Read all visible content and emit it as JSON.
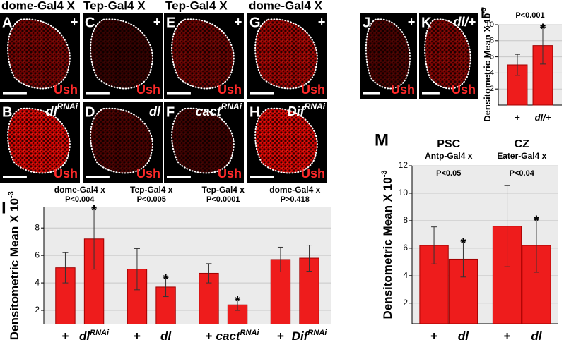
{
  "column_headers": [
    "dome-Gal4 X",
    "Tep-Gal4 X",
    "Tep-Gal4 X",
    "dome-Gal4 X"
  ],
  "image_panels": [
    {
      "letter": "A",
      "genotype": "+",
      "stain": "Ush"
    },
    {
      "letter": "B",
      "genotype": "dl",
      "genotype_sup": "RNAi",
      "stain": "Ush"
    },
    {
      "letter": "C",
      "genotype": "+",
      "stain": "Ush"
    },
    {
      "letter": "D",
      "genotype": "dl",
      "stain": "Ush"
    },
    {
      "letter": "E",
      "genotype": "+",
      "stain": "Ush"
    },
    {
      "letter": "F",
      "genotype": "cact",
      "genotype_sup": "RNAi",
      "stain": "Ush"
    },
    {
      "letter": "G",
      "genotype": "+",
      "stain": "Ush"
    },
    {
      "letter": "H",
      "genotype": "Dif",
      "genotype_sup": "RNAi",
      "stain": "Ush"
    },
    {
      "letter": "J",
      "genotype": "+",
      "stain": "Ush"
    },
    {
      "letter": "K",
      "genotype": "dl/+",
      "stain": "Ush"
    }
  ],
  "chart_data": [
    {
      "type": "bar",
      "panel": "I",
      "ylabel": "Densitometric Mean  X  10",
      "ylabel_sup": "-3",
      "group_labels": [
        "dome-Gal4 x",
        "Tep-Gal4 x",
        "Tep-Gal4 x",
        "dome-Gal4 x"
      ],
      "p_values": [
        "P<0.004",
        "P<0.005",
        "P<0.0001",
        "P>0.418"
      ],
      "categories": [
        "+",
        "dl",
        "+",
        "dl",
        "+",
        "cact",
        "+",
        "Dif"
      ],
      "category_superscripts": [
        null,
        "RNAi",
        null,
        null,
        null,
        "RNAi",
        null,
        "RNAi"
      ],
      "values": [
        5.1,
        7.2,
        5.0,
        3.7,
        4.7,
        2.4,
        5.7,
        5.8
      ],
      "errors": [
        1.1,
        2.2,
        1.5,
        0.7,
        0.7,
        0.4,
        0.9,
        0.95
      ],
      "value_annotations": [
        null,
        "*",
        null,
        "*",
        null,
        "*",
        null,
        null
      ],
      "color": "#ee1c1c",
      "ylim": [
        1,
        9.5
      ],
      "yticks": [
        2,
        4,
        6,
        8
      ],
      "grid": true
    },
    {
      "type": "bar",
      "panel": "L",
      "ylabel": "Densitometric Mean  X  10",
      "ylabel_sup": "-3",
      "p_values": [
        "P<0.001"
      ],
      "categories": [
        "+",
        "dl/+"
      ],
      "category_superscripts": [
        null,
        null
      ],
      "values": [
        5.0,
        7.4
      ],
      "errors": [
        1.3,
        2.3
      ],
      "value_annotations": [
        null,
        "*"
      ],
      "color": "#ee1c1c",
      "ylim": [
        0,
        10
      ],
      "yticks": [
        2,
        4,
        6,
        8,
        10
      ],
      "grid": true
    },
    {
      "type": "bar",
      "panel": "M",
      "ylabel": "Densitometric Mean  X  10",
      "ylabel_sup": "-3",
      "group_titles": [
        "PSC",
        "CZ"
      ],
      "group_labels": [
        "Antp-Gal4 x",
        "Eater-Gal4 x"
      ],
      "p_values": [
        "P<0.05",
        "P<0.04"
      ],
      "categories": [
        "+",
        "dl",
        "+",
        "dl"
      ],
      "category_superscripts": [
        null,
        null,
        null,
        null
      ],
      "values": [
        6.2,
        5.2,
        7.6,
        6.2
      ],
      "errors": [
        1.35,
        1.3,
        2.95,
        1.95
      ],
      "value_annotations": [
        null,
        "*",
        null,
        "*"
      ],
      "color": "#ee1c1c",
      "ylim": [
        0.5,
        12
      ],
      "yticks": [
        2,
        4,
        6,
        8,
        10,
        12
      ],
      "grid": true
    }
  ]
}
